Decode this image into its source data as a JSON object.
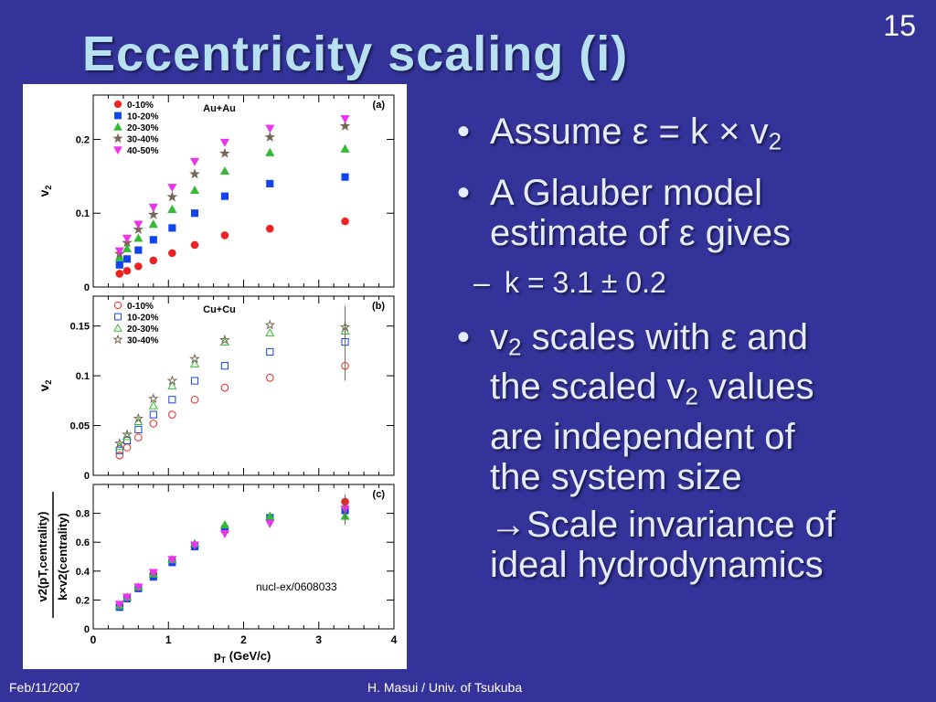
{
  "slide": {
    "title": "Eccentricity scaling (i)",
    "number": "15",
    "footer_left": "Feb/11/2007",
    "footer_center": "H. Masui / Univ. of Tsukuba"
  },
  "bullets": {
    "b1_prefix": "Assume ",
    "b1_eq": "ε = k × v",
    "b1_sub": "2",
    "b2_line1": "A Glauber model",
    "b2_line2": "estimate of ε gives",
    "sub1": "k = 3.1 ± 0.2",
    "b3_v": "v",
    "b3_v_sub": "2",
    "b3_rest1": " scales with ε and",
    "b3_line2_pre": "the scaled v",
    "b3_line2_sub": "2",
    "b3_line2_post": " values",
    "b3_line3": "are independent of",
    "b3_line4": "the system size",
    "conclusion_arrow": "→",
    "conclusion_line1": "Scale invariance of",
    "conclusion_line2": "ideal hydrodynamics"
  },
  "colors": {
    "background": "#333399",
    "title": "#b7e0f0",
    "c0_10": "#ee2222",
    "c10_20": "#1144ee",
    "c20_30": "#33bb33",
    "c30_40": "#776655",
    "c40_50": "#ee33ee"
  },
  "chart_data": [
    {
      "type": "scatter",
      "panel": "(a)",
      "system": "Au+Au",
      "ylabel": "v2",
      "xlim": [
        0,
        4
      ],
      "ylim": [
        0,
        0.26
      ],
      "yticks": [
        "0",
        "0.1",
        "0.2"
      ],
      "x": [
        0.35,
        0.45,
        0.6,
        0.8,
        1.05,
        1.35,
        1.75,
        2.35,
        3.35
      ],
      "series": [
        {
          "name": "0-10%",
          "marker": "circle",
          "filled": true,
          "color": "#ee2222",
          "values": [
            0.018,
            0.022,
            0.028,
            0.036,
            0.046,
            0.057,
            0.07,
            0.079,
            0.089
          ]
        },
        {
          "name": "10-20%",
          "marker": "square",
          "filled": true,
          "color": "#1144ee",
          "values": [
            0.03,
            0.038,
            0.05,
            0.064,
            0.08,
            0.1,
            0.123,
            0.14,
            0.149
          ]
        },
        {
          "name": "20-30%",
          "marker": "triangle",
          "filled": true,
          "color": "#33bb33",
          "values": [
            0.04,
            0.052,
            0.066,
            0.085,
            0.105,
            0.131,
            0.157,
            0.182,
            0.187
          ]
        },
        {
          "name": "30-40%",
          "marker": "star",
          "filled": true,
          "color": "#776655",
          "values": [
            0.045,
            0.06,
            0.078,
            0.098,
            0.122,
            0.153,
            0.181,
            0.203,
            0.218
          ]
        },
        {
          "name": "40-50%",
          "marker": "invtriangle",
          "filled": true,
          "color": "#ee33ee",
          "values": [
            0.049,
            0.066,
            0.085,
            0.108,
            0.135,
            0.17,
            0.196,
            0.215,
            0.228
          ]
        }
      ]
    },
    {
      "type": "scatter",
      "panel": "(b)",
      "system": "Cu+Cu",
      "ylabel": "v2",
      "xlim": [
        0,
        4
      ],
      "ylim": [
        0,
        0.18
      ],
      "yticks": [
        "0",
        "0.05",
        "0.1",
        "0.15"
      ],
      "x": [
        0.35,
        0.45,
        0.6,
        0.8,
        1.05,
        1.35,
        1.75,
        2.35,
        3.35
      ],
      "series": [
        {
          "name": "0-10%",
          "marker": "circle",
          "filled": false,
          "color": "#ee2222",
          "values": [
            0.02,
            0.028,
            0.038,
            0.052,
            0.061,
            0.076,
            0.088,
            0.098,
            0.11
          ]
        },
        {
          "name": "10-20%",
          "marker": "square",
          "filled": false,
          "color": "#1144ee",
          "values": [
            0.025,
            0.035,
            0.046,
            0.061,
            0.076,
            0.095,
            0.11,
            0.124,
            0.134
          ]
        },
        {
          "name": "20-30%",
          "marker": "triangle",
          "filled": false,
          "color": "#33bb33",
          "values": [
            0.029,
            0.039,
            0.054,
            0.07,
            0.09,
            0.112,
            0.134,
            0.143,
            0.145
          ]
        },
        {
          "name": "30-40%",
          "marker": "star",
          "filled": false,
          "color": "#776655",
          "values": [
            0.032,
            0.041,
            0.057,
            0.077,
            0.095,
            0.117,
            0.136,
            0.151,
            0.149
          ]
        }
      ]
    },
    {
      "type": "scatter",
      "panel": "(c)",
      "ylabel": "v2(pT,centrality) / k×v2(centrality)",
      "xlabel": "pT (GeV/c)",
      "xlim": [
        0,
        4
      ],
      "ylim": [
        0,
        1.0
      ],
      "xticks": [
        "0",
        "1",
        "2",
        "3",
        "4"
      ],
      "yticks": [
        "0",
        "0.2",
        "0.4",
        "0.6",
        "0.8"
      ],
      "annotation": "nucl-ex/0608033",
      "x": [
        0.35,
        0.45,
        0.6,
        0.8,
        1.05,
        1.35,
        1.75,
        2.35,
        3.35
      ],
      "series": [
        {
          "marker": "circle",
          "filled": true,
          "color": "#ee2222",
          "values": [
            0.16,
            0.21,
            0.28,
            0.38,
            0.47,
            0.57,
            0.68,
            0.76,
            0.88
          ]
        },
        {
          "marker": "square",
          "filled": true,
          "color": "#1144ee",
          "values": [
            0.15,
            0.21,
            0.28,
            0.36,
            0.46,
            0.57,
            0.69,
            0.77,
            0.82
          ]
        },
        {
          "marker": "triangle",
          "filled": true,
          "color": "#33bb33",
          "values": [
            0.16,
            0.22,
            0.29,
            0.38,
            0.48,
            0.59,
            0.72,
            0.78,
            0.78
          ]
        },
        {
          "marker": "invtriangle",
          "filled": true,
          "color": "#ee33ee",
          "values": [
            0.17,
            0.22,
            0.29,
            0.39,
            0.48,
            0.58,
            0.66,
            0.73,
            0.83
          ]
        }
      ]
    }
  ]
}
